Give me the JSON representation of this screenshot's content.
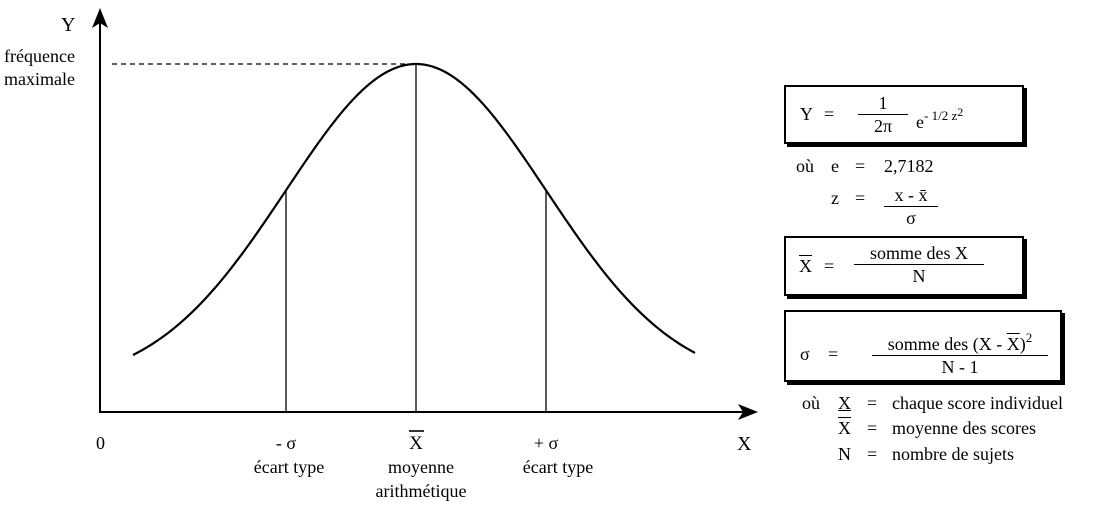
{
  "axes": {
    "y_label": "Y",
    "x_label": "X",
    "origin_label": "0",
    "peak_label_line1": "fréquence",
    "peak_label_line2": "maximale"
  },
  "markers": {
    "minus_sigma": {
      "symbol": "- σ",
      "caption": "écart type"
    },
    "mean": {
      "symbol": "X",
      "caption_line1": "moyenne",
      "caption_line2": "arithmétique"
    },
    "plus_sigma": {
      "symbol": "+ σ",
      "caption": "écart type"
    }
  },
  "formula_y": {
    "lhs": "Y",
    "eq": "=",
    "num": "1",
    "den": "2π",
    "exp_base": "e",
    "exp_power": "- 1/2 z",
    "exp_square": "2"
  },
  "where_1": {
    "ou": "où",
    "e_label": "e",
    "eq": "=",
    "e_value": "2,7182",
    "z_label": "z",
    "z_num": "x - x̄",
    "z_den": "σ"
  },
  "formula_mean": {
    "lhs": "X",
    "eq": "=",
    "num": "somme des X",
    "den": "N"
  },
  "formula_sigma": {
    "lhs": "σ",
    "eq": "=",
    "num_pre": "somme des (X - ",
    "num_bar": "X",
    "num_post": ")",
    "num_square": "2",
    "den": "N - 1"
  },
  "legend": {
    "ou": "où",
    "rows": [
      {
        "symbol": "X",
        "eq": "=",
        "text": "chaque score individuel"
      },
      {
        "symbol": "X",
        "eq": "=",
        "text": "moyenne des scores"
      },
      {
        "symbol": "N",
        "eq": "=",
        "text": "nombre de sujets"
      }
    ]
  }
}
